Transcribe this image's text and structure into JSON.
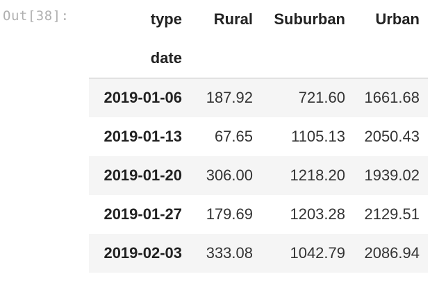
{
  "cell": {
    "prompt": "Out[38]:"
  },
  "dataframe": {
    "columns_name": "type",
    "index_name": "date",
    "columns": [
      "Rural",
      "Suburban",
      "Urban"
    ],
    "rows": [
      {
        "date": "2019-01-06",
        "values": [
          "187.92",
          "721.60",
          "1661.68"
        ]
      },
      {
        "date": "2019-01-13",
        "values": [
          "67.65",
          "1105.13",
          "2050.43"
        ]
      },
      {
        "date": "2019-01-20",
        "values": [
          "306.00",
          "1218.20",
          "1939.02"
        ]
      },
      {
        "date": "2019-01-27",
        "values": [
          "179.69",
          "1203.28",
          "2129.51"
        ]
      },
      {
        "date": "2019-02-03",
        "values": [
          "333.08",
          "1042.79",
          "2086.94"
        ]
      }
    ]
  },
  "colors": {
    "prompt": "#b0b0b0",
    "stripe": "#f5f5f5",
    "header_rule": "#bdbdbd"
  }
}
